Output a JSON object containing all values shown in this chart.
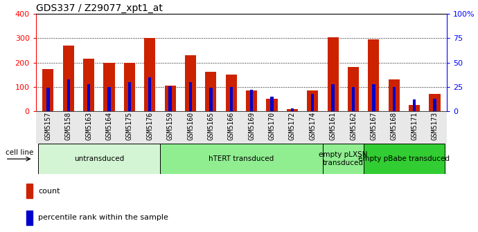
{
  "title": "GDS337 / Z29077_xpt1_at",
  "samples": [
    "GSM5157",
    "GSM5158",
    "GSM5163",
    "GSM5164",
    "GSM5175",
    "GSM5176",
    "GSM5159",
    "GSM5160",
    "GSM5165",
    "GSM5166",
    "GSM5169",
    "GSM5170",
    "GSM5172",
    "GSM5174",
    "GSM5161",
    "GSM5162",
    "GSM5167",
    "GSM5168",
    "GSM5171",
    "GSM5173"
  ],
  "count_values": [
    175,
    270,
    215,
    200,
    200,
    300,
    105,
    230,
    162,
    150,
    85,
    52,
    10,
    85,
    305,
    182,
    295,
    130,
    27,
    72
  ],
  "percentile_values": [
    24,
    33,
    28,
    25,
    30,
    35,
    26,
    30,
    24,
    25,
    22,
    15,
    3,
    18,
    28,
    25,
    28,
    25,
    12,
    13
  ],
  "groups": [
    {
      "label": "untransduced",
      "start": 0,
      "end": 6,
      "color": "#d4f5d4"
    },
    {
      "label": "hTERT transduced",
      "start": 6,
      "end": 14,
      "color": "#90ee90"
    },
    {
      "label": "empty pLXSN\ntransduced",
      "start": 14,
      "end": 16,
      "color": "#90ee90"
    },
    {
      "label": "empty pBabe transduced",
      "start": 16,
      "end": 20,
      "color": "#32cd32"
    }
  ],
  "ylim_left": [
    0,
    400
  ],
  "ylim_right": [
    0,
    100
  ],
  "yticks_left": [
    0,
    100,
    200,
    300,
    400
  ],
  "yticks_right": [
    0,
    25,
    50,
    75,
    100
  ],
  "ytick_labels_right": [
    "0",
    "25",
    "50",
    "75",
    "100%"
  ],
  "bar_color_red": "#cc2200",
  "bar_color_blue": "#0000cc",
  "bar_width": 0.55,
  "blue_bar_width": 0.15,
  "cell_line_label": "cell line",
  "legend_count": "count",
  "legend_pct": "percentile rank within the sample",
  "title_fontsize": 10,
  "tick_label_fontsize": 7,
  "group_label_fontsize": 7.5
}
